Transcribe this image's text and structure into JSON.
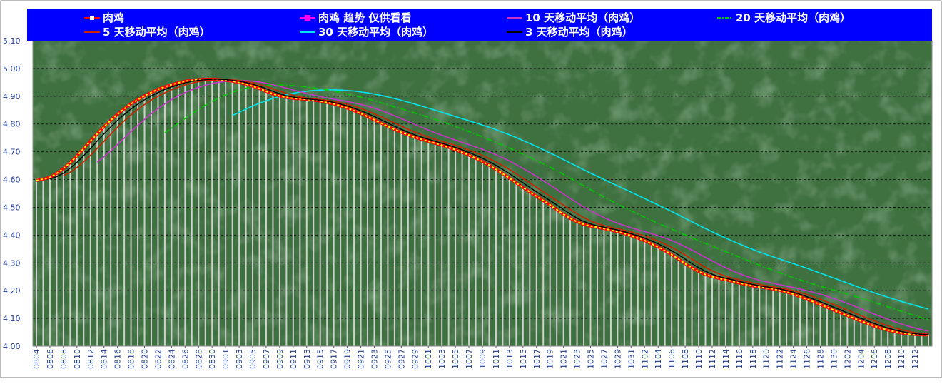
{
  "chart_data": {
    "type": "line",
    "title": "",
    "xlabel": "",
    "ylabel": "",
    "ylim": [
      4.0,
      5.1
    ],
    "y_ticks": [
      "4.00",
      "4.10",
      "4.20",
      "4.30",
      "4.40",
      "4.50",
      "4.60",
      "4.70",
      "4.80",
      "4.90",
      "5.00",
      "5.10"
    ],
    "x_tick_labels": [
      "0804",
      "0806",
      "0808",
      "0810",
      "0812",
      "0814",
      "0816",
      "0818",
      "0820",
      "0822",
      "0824",
      "0826",
      "0828",
      "0830",
      "0901",
      "0903",
      "0905",
      "0907",
      "0909",
      "0911",
      "0913",
      "0915",
      "0917",
      "0919",
      "0921",
      "0923",
      "0925",
      "0927",
      "0929",
      "1001",
      "1003",
      "1005",
      "1007",
      "1009",
      "1011",
      "1013",
      "1015",
      "1017",
      "1019",
      "1021",
      "1023",
      "1025",
      "1027",
      "1029",
      "1031",
      "1102",
      "1104",
      "1106",
      "1108",
      "1110",
      "1112",
      "1114",
      "1116",
      "1118",
      "1120",
      "1122",
      "1124",
      "1126",
      "1128",
      "1130",
      "1202",
      "1204",
      "1206",
      "1208",
      "1210",
      "1212"
    ],
    "grid": true,
    "legend_position": "top",
    "background": "green-texture",
    "colors": {
      "legend_bg": "#0000ff",
      "plot_bg": "#3e7040",
      "bars": "#dcdcdc",
      "price": "#ff0000",
      "price_dash": "#ffff00",
      "trend": "#ff00ff",
      "ma10": "#cc33cc",
      "ma20": "#00cc00",
      "ma5": "#cc2200",
      "ma30": "#00e5ee",
      "ma3": "#000000"
    },
    "key_points": [
      {
        "x": "0804",
        "y": 4.585
      },
      {
        "x": "0808",
        "y": 4.63
      },
      {
        "x": "0812",
        "y": 4.74
      },
      {
        "x": "0816",
        "y": 4.84
      },
      {
        "x": "0820",
        "y": 4.905
      },
      {
        "x": "0824",
        "y": 4.945
      },
      {
        "x": "0828",
        "y": 4.963
      },
      {
        "x": "0901",
        "y": 4.96
      },
      {
        "x": "0905",
        "y": 4.94
      },
      {
        "x": "0909",
        "y": 4.895
      },
      {
        "x": "0913",
        "y": 4.89
      },
      {
        "x": "0917",
        "y": 4.875
      },
      {
        "x": "0921",
        "y": 4.84
      },
      {
        "x": "0925",
        "y": 4.79
      },
      {
        "x": "0929",
        "y": 4.75
      },
      {
        "x": "1003",
        "y": 4.725
      },
      {
        "x": "1007",
        "y": 4.69
      },
      {
        "x": "1011",
        "y": 4.64
      },
      {
        "x": "1015",
        "y": 4.57
      },
      {
        "x": "1019",
        "y": 4.51
      },
      {
        "x": "1023",
        "y": 4.44
      },
      {
        "x": "1027",
        "y": 4.425
      },
      {
        "x": "1031",
        "y": 4.4
      },
      {
        "x": "1104",
        "y": 4.36
      },
      {
        "x": "1108",
        "y": 4.3
      },
      {
        "x": "1110",
        "y": 4.26
      },
      {
        "x": "1114",
        "y": 4.24
      },
      {
        "x": "1118",
        "y": 4.215
      },
      {
        "x": "1122",
        "y": 4.205
      },
      {
        "x": "1126",
        "y": 4.17
      },
      {
        "x": "1130",
        "y": 4.13
      },
      {
        "x": "1204",
        "y": 4.09
      },
      {
        "x": "1208",
        "y": 4.055
      },
      {
        "x": "1212",
        "y": 4.04
      },
      {
        "x": "1214",
        "y": 4.04
      }
    ],
    "series": [
      {
        "name": "肉鸡",
        "key": "price",
        "style": "line-with-markers"
      },
      {
        "name": "肉鸡 趋势 仅供看看",
        "key": "trend",
        "style": "marker"
      },
      {
        "name": "10 天移动平均（肉鸡）",
        "key": "ma10",
        "window": 10
      },
      {
        "name": "20 天移动平均（肉鸡）",
        "key": "ma20",
        "window": 20,
        "style": "dash-dot"
      },
      {
        "name": "5 天移动平均（肉鸡）",
        "key": "ma5",
        "window": 5
      },
      {
        "name": "30 天移动平均（肉鸡）",
        "key": "ma30",
        "window": 30
      },
      {
        "name": "3 天移动平均（肉鸡）",
        "key": "ma3",
        "window": 3
      }
    ]
  }
}
